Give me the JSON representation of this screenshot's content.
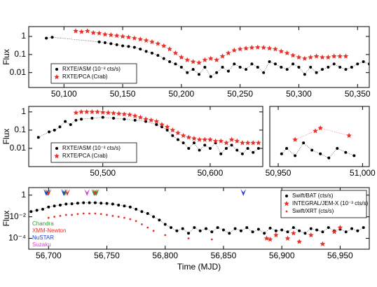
{
  "chart_data": [
    {
      "type": "scatter",
      "ylabel": "Flux",
      "log_y": true,
      "legend": "lower left",
      "xlim": [
        50070,
        50360
      ],
      "ylim": [
        0.0015,
        3.5
      ],
      "xticks": [
        {
          "value": 50100,
          "label": "50,100"
        },
        {
          "value": 50150,
          "label": "50,150"
        },
        {
          "value": 50200,
          "label": "50,200"
        },
        {
          "value": 50250,
          "label": "50,250"
        },
        {
          "value": 50300,
          "label": "50,300"
        },
        {
          "value": 50350,
          "label": "50,350"
        }
      ],
      "yticks": [
        0.01,
        0.1,
        1
      ],
      "series": [
        {
          "name": "RXTE/ASM (10⁻² cts/s)",
          "color": "#000000",
          "marker": "circle",
          "linestyle": "dotted",
          "x": [
            50085,
            50090,
            50130,
            50135,
            50140,
            50145,
            50150,
            50155,
            50160,
            50165,
            50170,
            50175,
            50180,
            50185,
            50190,
            50195,
            50200,
            50205,
            50210,
            50215,
            50220,
            50225,
            50230,
            50235,
            50240,
            50245,
            50250,
            50255,
            50260,
            50265,
            50270,
            50275,
            50280,
            50285,
            50290,
            50295,
            50300,
            50305,
            50310,
            50315,
            50320,
            50325,
            50330,
            50335,
            50340,
            50345,
            50350,
            50355,
            50360
          ],
          "values": [
            0.8,
            0.9,
            0.5,
            0.45,
            0.4,
            0.35,
            0.3,
            0.28,
            0.25,
            0.2,
            0.15,
            0.12,
            0.09,
            0.06,
            0.04,
            0.03,
            0.02,
            0.01,
            0.015,
            0.008,
            0.02,
            0.006,
            0.01,
            0.02,
            0.012,
            0.03,
            0.02,
            0.015,
            0.03,
            0.02,
            0.01,
            0.04,
            0.03,
            0.02,
            0.015,
            0.03,
            0.02,
            0.008,
            0.02,
            0.01,
            0.015,
            0.02,
            0.03,
            0.02,
            0.015,
            0.02,
            0.03,
            0.04,
            0.03
          ]
        },
        {
          "name": "RXTE/PCA (Crab)",
          "color": "#e8302a",
          "marker": "star",
          "linestyle": "dotted",
          "x": [
            50110,
            50115,
            50120,
            50125,
            50130,
            50135,
            50140,
            50145,
            50150,
            50155,
            50160,
            50165,
            50170,
            50175,
            50180,
            50185,
            50190,
            50195,
            50200,
            50205,
            50210,
            50215,
            50220,
            50225,
            50230,
            50235,
            50240,
            50245,
            50250,
            50255,
            50260,
            50265,
            50270,
            50275,
            50280,
            50285,
            50290,
            50295,
            50300,
            50305,
            50310,
            50315,
            50320,
            50325,
            50330,
            50335,
            50340
          ],
          "values": [
            2,
            1.8,
            2,
            1.6,
            1.5,
            1.3,
            1.2,
            1.1,
            1,
            0.9,
            0.8,
            0.7,
            0.6,
            0.5,
            0.4,
            0.3,
            0.2,
            0.12,
            0.07,
            0.05,
            0.04,
            0.035,
            0.05,
            0.06,
            0.05,
            0.08,
            0.12,
            0.17,
            0.2,
            0.22,
            0.24,
            0.25,
            0.24,
            0.22,
            0.2,
            0.15,
            0.12,
            0.09,
            0.07,
            0.06,
            0.07,
            0.08,
            0.07,
            0.07,
            0.08,
            0.08,
            0.08
          ]
        }
      ]
    },
    {
      "type": "scatter",
      "ylabel": "Flux",
      "log_y": true,
      "legend": "lower left",
      "xlim": [
        50431,
        50649
      ],
      "ylim": [
        0.001,
        2
      ],
      "xticks": [
        {
          "value": 50500,
          "label": "50,500"
        },
        {
          "value": 50600,
          "label": "50,600"
        }
      ],
      "yticks": [
        0.01,
        0.1,
        1
      ],
      "series": [
        {
          "name": "RXTE/ASM (10⁻² cts/s)",
          "color": "#000000",
          "marker": "circle",
          "linestyle": "dotted",
          "x": [
            50440,
            50450,
            50455,
            50460,
            50465,
            50470,
            50475,
            50480,
            50490,
            50500,
            50510,
            50520,
            50530,
            50540,
            50550,
            50555,
            50560,
            50565,
            50570,
            50575,
            50580,
            50585,
            50590,
            50595,
            50600,
            50605,
            50610,
            50615,
            50620,
            50625,
            50630,
            50635,
            50640,
            50645
          ],
          "values": [
            0.04,
            0.08,
            0.1,
            0.15,
            0.3,
            0.2,
            0.35,
            0.4,
            0.45,
            0.5,
            0.45,
            0.4,
            0.35,
            0.3,
            0.2,
            0.15,
            0.1,
            0.05,
            0.03,
            0.02,
            0.01,
            0.02,
            0.008,
            0.015,
            0.01,
            0.02,
            0.005,
            0.01,
            0.015,
            0.008,
            0.005,
            0.01,
            0.006,
            0.01
          ]
        },
        {
          "name": "RXTE/PCA (Crab)",
          "color": "#e8302a",
          "marker": "star",
          "linestyle": "dotted",
          "x": [
            50475,
            50480,
            50485,
            50490,
            50495,
            50500,
            50505,
            50510,
            50515,
            50520,
            50525,
            50530,
            50535,
            50540,
            50545,
            50550,
            50555,
            50560,
            50565,
            50570,
            50575,
            50580,
            50585,
            50590,
            50595,
            50600,
            50605,
            50610,
            50615,
            50620,
            50625,
            50630,
            50635,
            50640,
            50645
          ],
          "values": [
            0.9,
            1,
            1,
            1,
            1,
            0.95,
            0.9,
            0.85,
            0.8,
            0.75,
            0.7,
            0.6,
            0.5,
            0.4,
            0.35,
            0.3,
            0.2,
            0.15,
            0.1,
            0.07,
            0.05,
            0.04,
            0.035,
            0.03,
            0.03,
            0.03,
            0.025,
            0.025,
            0.02,
            0.03,
            0.025,
            0.02,
            0.02,
            0.02,
            0.02
          ]
        }
      ]
    },
    {
      "type": "scatter",
      "log_y": true,
      "xlim": [
        50945,
        51004
      ],
      "ylim": [
        0.001,
        2
      ],
      "xticks": [
        {
          "value": 50950,
          "label": "50,950"
        },
        {
          "value": 51000,
          "label": "51,000"
        }
      ],
      "series": [
        {
          "color": "#000000",
          "marker": "circle",
          "linestyle": "dotted",
          "x": [
            50952,
            50955,
            50960,
            50965,
            50970,
            50975,
            50980,
            50985,
            50990,
            50995
          ],
          "values": [
            0.005,
            0.01,
            0.004,
            0.02,
            0.008,
            0.005,
            0.003,
            0.01,
            0.006,
            0.004
          ]
        },
        {
          "color": "#e8302a",
          "marker": "star",
          "linestyle": "dotted",
          "x": [
            50960,
            50972,
            50975,
            50992
          ],
          "values": [
            0.03,
            0.09,
            0.13,
            0.05
          ]
        }
      ]
    },
    {
      "type": "scatter",
      "ylabel": "Flux",
      "xlabel": "Time (MJD)",
      "log_y": true,
      "legend": "upper right",
      "xlim": [
        56683,
        56975
      ],
      "ylim": [
        1e-05,
        5
      ],
      "xticks": [
        {
          "value": 56700,
          "label": "56,700"
        },
        {
          "value": 56750,
          "label": "56,750"
        },
        {
          "value": 56800,
          "label": "56,800"
        },
        {
          "value": 56850,
          "label": "56,850"
        },
        {
          "value": 56900,
          "label": "56,900"
        },
        {
          "value": 56950,
          "label": "56,950"
        }
      ],
      "yticks": [
        {
          "value": 0.0001,
          "label": "10⁻⁴"
        },
        {
          "value": 0.01,
          "label": "10⁻²"
        },
        1
      ],
      "series": [
        {
          "name": "Swift/BAT (cts/s)",
          "color": "#000000",
          "marker": "circle",
          "linestyle": "dotted",
          "x": [
            56685,
            56690,
            56695,
            56700,
            56705,
            56710,
            56715,
            56720,
            56725,
            56730,
            56735,
            56740,
            56745,
            56750,
            56755,
            56760,
            56765,
            56770,
            56775,
            56780,
            56785,
            56790,
            56795,
            56800,
            56805,
            56810,
            56815,
            56820,
            56825,
            56830,
            56835,
            56840,
            56845,
            56850,
            56855,
            56860,
            56865,
            56870,
            56875,
            56880,
            56885,
            56890,
            56895,
            56900,
            56905,
            56910,
            56915,
            56920,
            56925,
            56930,
            56935,
            56940,
            56945,
            56950,
            56955,
            56960,
            56965,
            56970
          ],
          "values": [
            0.03,
            0.04,
            0.05,
            0.08,
            0.1,
            0.12,
            0.15,
            0.16,
            0.18,
            0.2,
            0.2,
            0.2,
            0.18,
            0.17,
            0.15,
            0.12,
            0.1,
            0.08,
            0.05,
            0.03,
            0.02,
            0.01,
            0.005,
            0.002,
            0.001,
            0.0005,
            0.0008,
            0.0003,
            0.001,
            0.0005,
            0.0008,
            0.0004,
            0.001,
            0.0006,
            0.0003,
            0.0008,
            0.0005,
            0.001,
            0.0004,
            0.0007,
            0.0003,
            0.0009,
            0.0005,
            0.0006,
            0.0004,
            0.001,
            0.0005,
            0.0003,
            0.0008,
            0.0006,
            0.0004,
            0.001,
            0.0005,
            0.0007,
            0.0004,
            0.0008,
            0.0005,
            0.001
          ]
        },
        {
          "name": "INTEGRAL/JEM-X (10⁻³ cts/s)",
          "color": "#e8302a",
          "marker": "star",
          "x": [
            56887,
            56890,
            56895,
            56905,
            56910,
            56915,
            56925,
            56935,
            56945,
            56950
          ],
          "values": [
            0.0001,
            8e-05,
            0.0002,
            0.0001,
            0.0003,
            5e-05,
            0.0002,
            3e-05,
            0.0004,
            0.001
          ]
        },
        {
          "name": "Swift/XRT (cts/s)",
          "color": "#e8302a",
          "marker": "dot",
          "x": [
            56700,
            56705,
            56710,
            56715,
            56720,
            56725,
            56730,
            56735,
            56740,
            56745,
            56750,
            56755,
            56760,
            56765,
            56770,
            56775,
            56780,
            56785,
            56790,
            56800,
            56820,
            56840
          ],
          "values": [
            0.008,
            0.01,
            0.012,
            0.015,
            0.015,
            0.018,
            0.02,
            0.02,
            0.02,
            0.018,
            0.015,
            0.012,
            0.01,
            0.008,
            0.006,
            0.004,
            0.002,
            0.001,
            0.0005,
            0.0002,
            0.0001,
            8e-05
          ]
        }
      ],
      "observations": [
        {
          "name": "Chandra",
          "color": "#2ca02c",
          "x": [
            56699,
            56714,
            56739,
            56741
          ]
        },
        {
          "name": "XMM-Newton",
          "color": "#e8302a",
          "x": [
            56700,
            56716,
            56740
          ]
        },
        {
          "name": "NuSTAR",
          "color": "#1f3fd6",
          "x": [
            56698,
            56713,
            56867
          ]
        },
        {
          "name": "Suzaku",
          "color": "#d63fd6",
          "x": [
            56733
          ]
        }
      ]
    }
  ]
}
